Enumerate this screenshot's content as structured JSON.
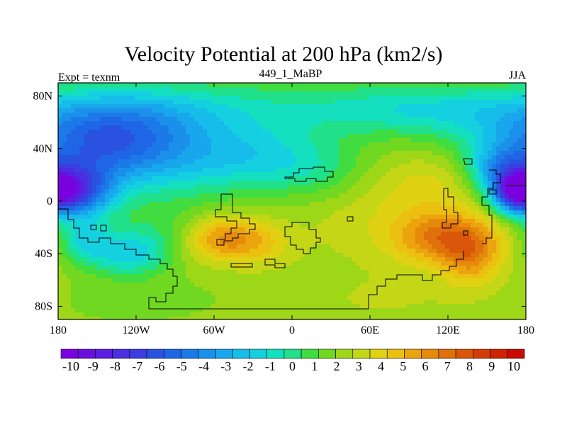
{
  "figure": {
    "title": "Velocity Potential at 200 hPa (km2/s)",
    "left_label": "Expt = texnm",
    "center_label": "449_1_MaBP",
    "right_label": "JJA"
  },
  "axes": {
    "x_ticks": [
      "180",
      "120W",
      "60W",
      "0",
      "60E",
      "120E",
      "180"
    ],
    "y_ticks": [
      "80N",
      "40N",
      "0",
      "40S",
      "80S"
    ],
    "lon_range": [
      -180,
      180
    ],
    "lat_range": [
      -90,
      90
    ]
  },
  "colorbar": {
    "labels": [
      "-10",
      "-9",
      "-8",
      "-7",
      "-6",
      "-5",
      "-4",
      "-3",
      "-2",
      "-1",
      "0",
      "1",
      "2",
      "3",
      "4",
      "5",
      "6",
      "7",
      "8",
      "9",
      "10"
    ],
    "colors": [
      "#7a00e0",
      "#6a0ee0",
      "#5a1ee0",
      "#4a2ee0",
      "#3a3ee0",
      "#2a52e0",
      "#1e66e6",
      "#1c7ae8",
      "#1a90ea",
      "#18a6ec",
      "#16bcea",
      "#14d0e0",
      "#14e0c0",
      "#20e08a",
      "#40dc40",
      "#70d820",
      "#9ed618",
      "#c4d616",
      "#e0d212",
      "#ecc010",
      "#eca40e",
      "#e68a0c",
      "#e0700a",
      "#da5608",
      "#d43c06",
      "#ce2204",
      "#c80a02"
    ],
    "range": [
      -10,
      10
    ]
  },
  "field": {
    "background_value": 2.2,
    "blobs": [
      {
        "lon": -170,
        "lat": 7,
        "sx": 22,
        "sy": 14,
        "value": -7.8
      },
      {
        "lon": -150,
        "lat": 40,
        "sx": 45,
        "sy": 20,
        "value": -4.5
      },
      {
        "lon": -130,
        "lat": 60,
        "sx": 60,
        "sy": 20,
        "value": -2.5
      },
      {
        "lon": -125,
        "lat": -40,
        "sx": 22,
        "sy": 12,
        "value": -3.2
      },
      {
        "lon": -160,
        "lat": -30,
        "sx": 15,
        "sy": 12,
        "value": -2.5
      },
      {
        "lon": -80,
        "lat": 25,
        "sx": 55,
        "sy": 20,
        "value": -2.0
      },
      {
        "lon": -20,
        "lat": 35,
        "sx": 40,
        "sy": 15,
        "value": -1.5
      },
      {
        "lon": 20,
        "lat": 20,
        "sx": 30,
        "sy": 15,
        "value": -1.0
      },
      {
        "lon": 0,
        "lat": 70,
        "sx": 200,
        "sy": 18,
        "value": -1.8
      },
      {
        "lon": 100,
        "lat": 70,
        "sx": 50,
        "sy": 12,
        "value": -1.0
      },
      {
        "lon": 172,
        "lat": 7,
        "sx": 12,
        "sy": 10,
        "value": -6.0
      },
      {
        "lon": 160,
        "lat": 25,
        "sx": 18,
        "sy": 12,
        "value": -3.0
      },
      {
        "lon": -55,
        "lat": -28,
        "sx": 20,
        "sy": 12,
        "value": 3.8
      },
      {
        "lon": -25,
        "lat": -32,
        "sx": 18,
        "sy": 12,
        "value": 2.0
      },
      {
        "lon": 120,
        "lat": -28,
        "sx": 28,
        "sy": 14,
        "value": 4.5
      },
      {
        "lon": 138,
        "lat": -45,
        "sx": 16,
        "sy": 15,
        "value": 2.8
      },
      {
        "lon": 110,
        "lat": 15,
        "sx": 30,
        "sy": 18,
        "value": 1.5
      },
      {
        "lon": 70,
        "lat": -10,
        "sx": 45,
        "sy": 25,
        "value": 1.2
      },
      {
        "lon": 80,
        "lat": -75,
        "sx": 60,
        "sy": 15,
        "value": 0.8
      },
      {
        "lon": -130,
        "lat": -75,
        "sx": 70,
        "sy": 15,
        "value": -0.3
      },
      {
        "lon": -100,
        "lat": -20,
        "sx": 30,
        "sy": 14,
        "value": -0.8
      },
      {
        "lon": 160,
        "lat": -70,
        "sx": 30,
        "sy": 15,
        "value": 0.5
      }
    ]
  }
}
